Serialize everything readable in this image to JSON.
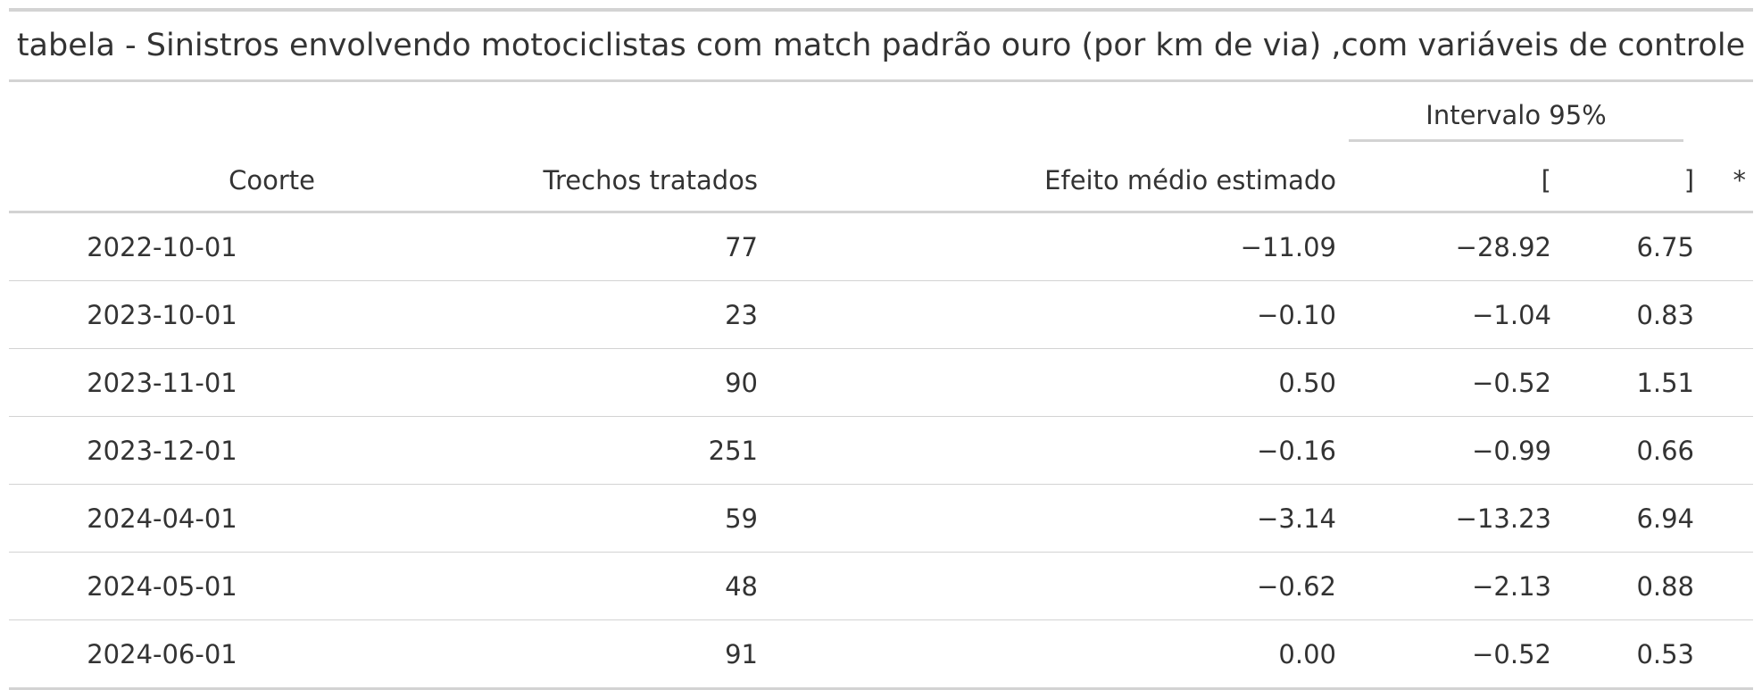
{
  "title": "tabela - Sinistros envolvendo motociclistas com match padrão ouro (por km de via) ,com variáveis de controle",
  "spanner_label": "Intervalo 95%",
  "columns": {
    "coorte": "Coorte",
    "trechos": "Trechos tratados",
    "efeito": "Efeito médio estimado",
    "lower": "[",
    "upper": "]",
    "sig": "*"
  },
  "rows": [
    {
      "coorte": "2022-10-01",
      "trechos": "77",
      "efeito": "−11.09",
      "lower": "−28.92",
      "upper": "6.75",
      "sig": ""
    },
    {
      "coorte": "2023-10-01",
      "trechos": "23",
      "efeito": "−0.10",
      "lower": "−1.04",
      "upper": "0.83",
      "sig": ""
    },
    {
      "coorte": "2023-11-01",
      "trechos": "90",
      "efeito": "0.50",
      "lower": "−0.52",
      "upper": "1.51",
      "sig": ""
    },
    {
      "coorte": "2023-12-01",
      "trechos": "251",
      "efeito": "−0.16",
      "lower": "−0.99",
      "upper": "0.66",
      "sig": ""
    },
    {
      "coorte": "2024-04-01",
      "trechos": "59",
      "efeito": "−3.14",
      "lower": "−13.23",
      "upper": "6.94",
      "sig": ""
    },
    {
      "coorte": "2024-05-01",
      "trechos": "48",
      "efeito": "−0.62",
      "lower": "−2.13",
      "upper": "0.88",
      "sig": ""
    },
    {
      "coorte": "2024-06-01",
      "trechos": "91",
      "efeito": "0.00",
      "lower": "−0.52",
      "upper": "0.53",
      "sig": ""
    }
  ]
}
